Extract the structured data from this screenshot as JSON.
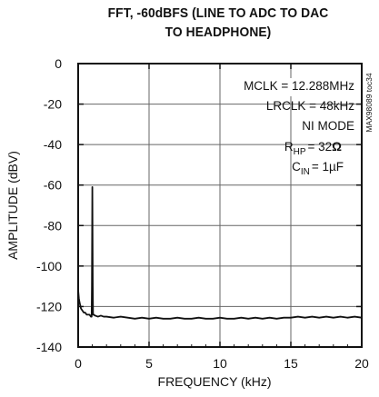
{
  "chart_data": {
    "type": "line",
    "title_line1": "FFT, -60dBFS (LINE TO ADC TO DAC",
    "title_line2": "TO HEADPHONE)",
    "xlabel": "FREQUENCY (kHz)",
    "ylabel": "AMPLITUDE (dBV)",
    "xlim": [
      0,
      20
    ],
    "ylim": [
      -140,
      0
    ],
    "x_ticks": [
      "0",
      "5",
      "10",
      "15",
      "20"
    ],
    "y_ticks": [
      "0",
      "-20",
      "-40",
      "-60",
      "-80",
      "-100",
      "-120",
      "-140"
    ],
    "x_tick_values": [
      0,
      5,
      10,
      15,
      20
    ],
    "y_tick_values": [
      0,
      -20,
      -40,
      -60,
      -80,
      -100,
      -120,
      -140
    ],
    "annotations": [
      "MCLK = 12.288MHz",
      "LRCLK = 48kHz",
      "NI MODE",
      "= 32",
      "C",
      "IN",
      "= 1µF"
    ],
    "r_hp": {
      "r": "R",
      "sub": "HP",
      "omega": "Ω"
    },
    "watermark": "MAX98089 toc34",
    "series": [
      {
        "x": [
          0.0,
          0.05,
          0.1,
          0.2,
          0.3,
          0.4,
          0.5,
          0.6,
          0.7,
          0.8,
          0.9,
          0.95,
          0.97,
          1.0,
          1.03,
          1.05,
          1.1,
          1.2,
          1.4,
          1.6,
          1.8,
          2.0,
          2.5,
          3.0,
          3.5,
          4.0,
          4.5,
          5.0,
          5.5,
          6.0,
          6.5,
          7.0,
          7.5,
          8.0,
          8.5,
          9.0,
          9.5,
          10.0,
          10.5,
          11.0,
          11.5,
          12.0,
          12.5,
          13.0,
          13.5,
          14.0,
          14.5,
          15.0,
          15.5,
          16.0,
          16.5,
          17.0,
          17.5,
          18.0,
          18.5,
          19.0,
          19.5,
          20.0
        ],
        "y": [
          -112,
          -116,
          -118,
          -121,
          -122,
          -123,
          -123,
          -124,
          -124,
          -124,
          -125,
          -125,
          -110,
          -61,
          -110,
          -124,
          -124,
          -124.5,
          -125,
          -124.5,
          -125,
          -125,
          -125.5,
          -125,
          -125.5,
          -126,
          -125.5,
          -126,
          -125.5,
          -126,
          -126,
          -125.5,
          -126,
          -126,
          -125.5,
          -126,
          -126,
          -125.5,
          -126,
          -126,
          -125.5,
          -126,
          -125.5,
          -126,
          -125.5,
          -126,
          -125.5,
          -125.5,
          -125,
          -125.5,
          -125,
          -125.5,
          -125,
          -125.5,
          -125,
          -125.5,
          -125,
          -125.5
        ]
      }
    ]
  }
}
